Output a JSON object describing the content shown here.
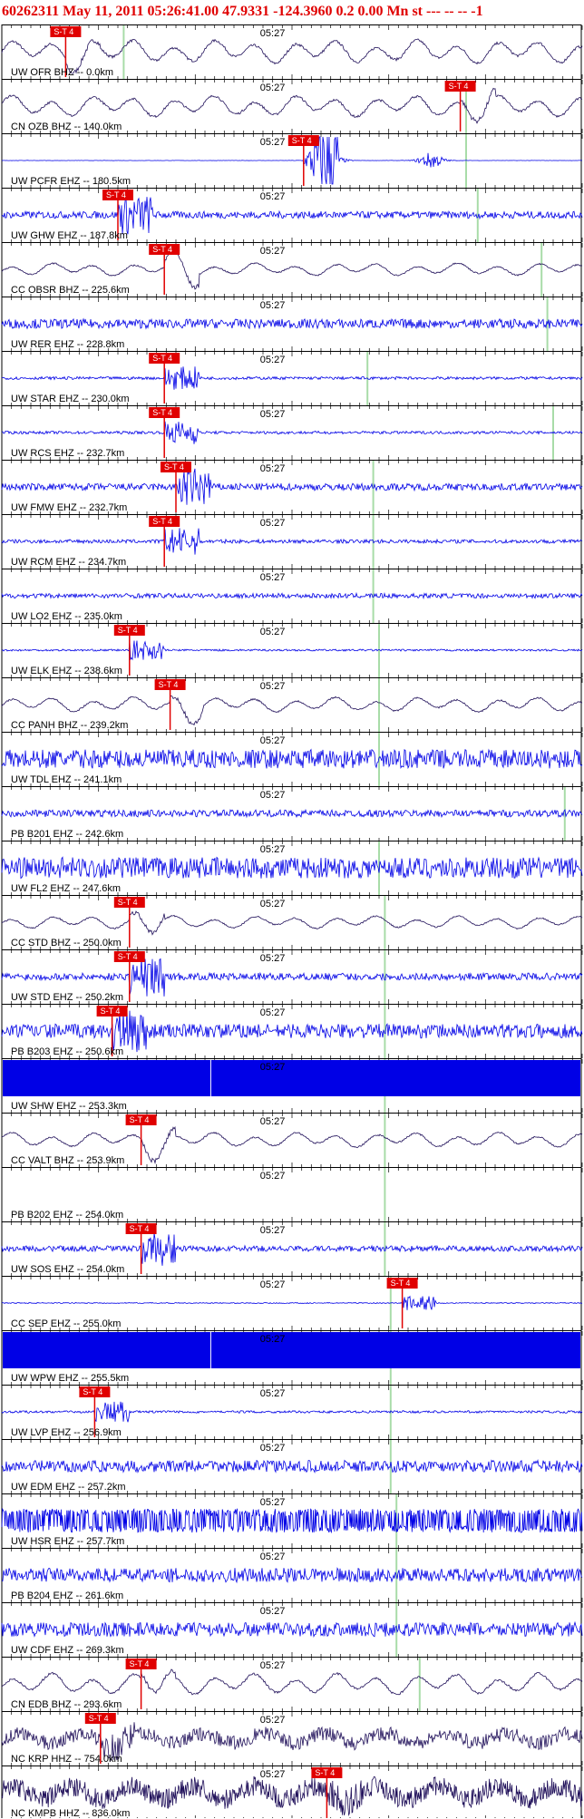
{
  "header": {
    "title": "60262311 May 11, 2011 05:26:41.00   47.9331 -124.3960  0.2 0.00 Mn st --- -- --  -1"
  },
  "chart_data": {
    "type": "line",
    "title": "60262311 May 11, 2011 05:26:41.00   47.9331 -124.3960  0.2 0.00 Mn st --- -- --  -1",
    "time_label": "05:27",
    "pick_label": "S-T 4",
    "colors": {
      "bhz": "#20105a",
      "ehz": "#0000e6",
      "pick": "#e00000",
      "grid": "#000000",
      "marker": "#a8dca8"
    },
    "traces": [
      {
        "label": "UW OFR BHZ -- 0.0km",
        "channel": "BHZ",
        "style": "bhz",
        "amp": 0.55,
        "pick": 0.11,
        "marker": 0.21
      },
      {
        "label": "CN OZB BHZ -- 140.0km",
        "channel": "BHZ",
        "style": "bhz",
        "amp": 0.5,
        "pick": 0.79,
        "marker": 0.8
      },
      {
        "label": "UW PCFR EHZ -- 180.5km",
        "channel": "EHZ",
        "style": "burst",
        "amp": 0.12,
        "pick": 0.52,
        "marker": 0.8
      },
      {
        "label": "UW GHW EHZ -- 187.8km",
        "channel": "EHZ",
        "style": "ehz",
        "amp": 0.15,
        "pick": 0.2,
        "marker": 0.82
      },
      {
        "label": "CC OBSR BHZ -- 225.6km",
        "channel": "BHZ",
        "style": "bhz",
        "amp": 0.3,
        "pick": 0.28,
        "marker": 0.93
      },
      {
        "label": "UW RER EHZ -- 228.8km",
        "channel": "EHZ",
        "style": "ehz",
        "amp": 0.2,
        "pick": null,
        "marker": 0.94
      },
      {
        "label": "UW STAR EHZ -- 230.0km",
        "channel": "EHZ",
        "style": "ehz",
        "amp": 0.06,
        "pick": 0.28,
        "marker": 0.63
      },
      {
        "label": "UW RCS EHZ -- 232.7km",
        "channel": "EHZ",
        "style": "ehz",
        "amp": 0.06,
        "pick": 0.28,
        "marker": 0.95
      },
      {
        "label": "UW FMW EHZ -- 232.7km",
        "channel": "EHZ",
        "style": "ehz",
        "amp": 0.15,
        "pick": 0.3,
        "marker": 0.64
      },
      {
        "label": "UW RCM EHZ -- 234.7km",
        "channel": "EHZ",
        "style": "ehz",
        "amp": 0.08,
        "pick": 0.28,
        "marker": 0.64
      },
      {
        "label": "UW LO2 EHZ -- 235.0km",
        "channel": "EHZ",
        "style": "ehz",
        "amp": 0.1,
        "pick": null,
        "marker": 0.64
      },
      {
        "label": "UW ELK EHZ -- 238.6km",
        "channel": "EHZ",
        "style": "ehz",
        "amp": 0.04,
        "pick": 0.22,
        "marker": 0.65
      },
      {
        "label": "CC PANH BHZ -- 239.2km",
        "channel": "BHZ",
        "style": "bhz",
        "amp": 0.35,
        "pick": 0.29,
        "marker": 0.65
      },
      {
        "label": "UW TDL EHZ -- 241.1km",
        "channel": "EHZ",
        "style": "ehz",
        "amp": 0.4,
        "pick": null,
        "marker": 0.65
      },
      {
        "label": "PB B201 EHZ -- 242.6km",
        "channel": "EHZ",
        "style": "ehz",
        "amp": 0.15,
        "pick": null,
        "marker": 0.97
      },
      {
        "label": "UW FL2 EHZ -- 247.6km",
        "channel": "EHZ",
        "style": "ehz",
        "amp": 0.45,
        "pick": null,
        "marker": 0.65
      },
      {
        "label": "CC STD BHZ -- 250.0km",
        "channel": "BHZ",
        "style": "bhz",
        "amp": 0.3,
        "pick": 0.22,
        "marker": 0.66
      },
      {
        "label": "UW STD EHZ -- 250.2km",
        "channel": "EHZ",
        "style": "ehz",
        "amp": 0.15,
        "pick": 0.22,
        "marker": 0.66
      },
      {
        "label": "PB B203 EHZ -- 250.6km",
        "channel": "EHZ",
        "style": "ehz",
        "amp": 0.3,
        "pick": 0.19,
        "marker": 0.66
      },
      {
        "label": "UW SHW EHZ -- 253.3km",
        "channel": "EHZ",
        "style": "saturated",
        "amp": 1.0,
        "pick": null,
        "marker": 0.66
      },
      {
        "label": "CC VALT BHZ -- 253.9km",
        "channel": "BHZ",
        "style": "bhz",
        "amp": 0.35,
        "pick": 0.24,
        "marker": 0.66
      },
      {
        "label": "PB B202 EHZ -- 254.0km",
        "channel": "EHZ",
        "style": "flat",
        "amp": 0,
        "pick": null,
        "marker": 0.66
      },
      {
        "label": "UW SOS EHZ -- 254.0km",
        "channel": "EHZ",
        "style": "ehz",
        "amp": 0.12,
        "pick": 0.24,
        "marker": 0.66
      },
      {
        "label": "CC SEP EHZ -- 255.0km",
        "channel": "EHZ",
        "style": "sep",
        "amp": 0.02,
        "pick": 0.69,
        "marker": 0.67
      },
      {
        "label": "UW WPW EHZ -- 255.5km",
        "channel": "EHZ",
        "style": "saturated",
        "amp": 1.0,
        "pick": null,
        "marker": 0.67
      },
      {
        "label": "UW LVP EHZ -- 256.9km",
        "channel": "EHZ",
        "style": "ehz",
        "amp": 0.05,
        "pick": 0.16,
        "marker": 0.67
      },
      {
        "label": "UW EDM EHZ -- 257.2km",
        "channel": "EHZ",
        "style": "ehz",
        "amp": 0.25,
        "pick": null,
        "marker": 0.67
      },
      {
        "label": "UW HSR EHZ -- 257.7km",
        "channel": "EHZ",
        "style": "spiky",
        "amp": 0.5,
        "pick": null,
        "marker": 0.68
      },
      {
        "label": "PB B204 EHZ -- 261.6km",
        "channel": "EHZ",
        "style": "ehz",
        "amp": 0.3,
        "pick": null,
        "marker": 0.68
      },
      {
        "label": "UW CDF EHZ -- 269.3km",
        "channel": "EHZ",
        "style": "ehz",
        "amp": 0.3,
        "pick": null,
        "marker": 0.68
      },
      {
        "label": "CN EDB BHZ -- 293.6km",
        "channel": "BHZ",
        "style": "bhz",
        "amp": 0.5,
        "pick": 0.24,
        "marker": 0.72
      },
      {
        "label": "NC KRP HHZ -- 754.0km",
        "channel": "HHZ",
        "style": "hhz",
        "amp": 0.5,
        "pick": 0.17,
        "marker": null
      },
      {
        "label": "NC KMPB HHZ -- 836.0km",
        "channel": "HHZ",
        "style": "hhz_dense",
        "amp": 0.7,
        "pick": 0.56,
        "marker": null
      }
    ]
  }
}
